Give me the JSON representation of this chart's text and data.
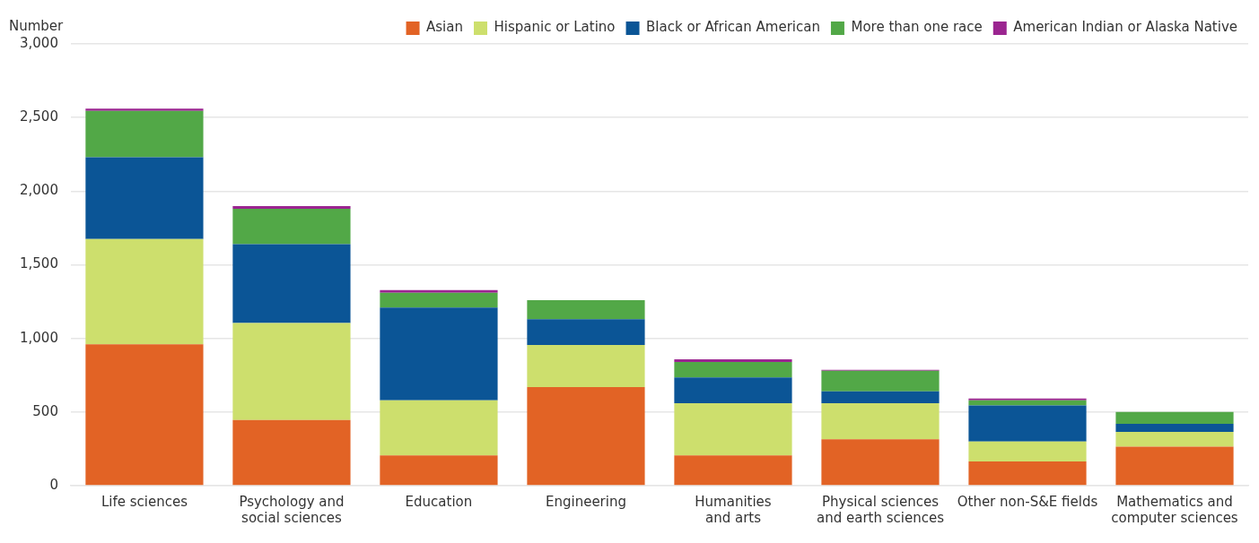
{
  "chart_data": {
    "type": "bar",
    "ylabel": "Number",
    "categories": [
      "Life sciences",
      "Psychology and\nsocial sciences",
      "Education",
      "Engineering",
      "Humanities\nand arts",
      "Physical sciences\nand earth sciences",
      "Other non-S&E fields",
      "Mathematics and\ncomputer sciences"
    ],
    "series": [
      {
        "name": "Asian",
        "color": "#e26325",
        "values": [
          960,
          445,
          205,
          670,
          205,
          315,
          165,
          265
        ]
      },
      {
        "name": "Hispanic or Latino",
        "color": "#cddf6d",
        "values": [
          715,
          660,
          375,
          285,
          355,
          245,
          135,
          100
        ]
      },
      {
        "name": "Black or African American",
        "color": "#0b5596",
        "values": [
          555,
          535,
          630,
          175,
          175,
          80,
          245,
          55
        ]
      },
      {
        "name": "More than one race",
        "color": "#52a847",
        "values": [
          315,
          240,
          100,
          130,
          105,
          140,
          35,
          80
        ]
      },
      {
        "name": "American Indian or Alaska Native",
        "color": "#9b2590",
        "values": [
          15,
          18,
          18,
          0,
          18,
          6,
          12,
          0
        ]
      }
    ],
    "stacked": true,
    "ylim": [
      0,
      3000
    ],
    "yticks": [
      0,
      500,
      {
        "value": 1000,
        "label": "1,000"
      },
      {
        "value": 1500,
        "label": "1,500"
      },
      {
        "value": 2000,
        "label": "2,000"
      },
      {
        "value": 2500,
        "label": "2,500"
      },
      {
        "value": 3000,
        "label": "3,000"
      }
    ],
    "grid": "y",
    "legend": "top right"
  }
}
